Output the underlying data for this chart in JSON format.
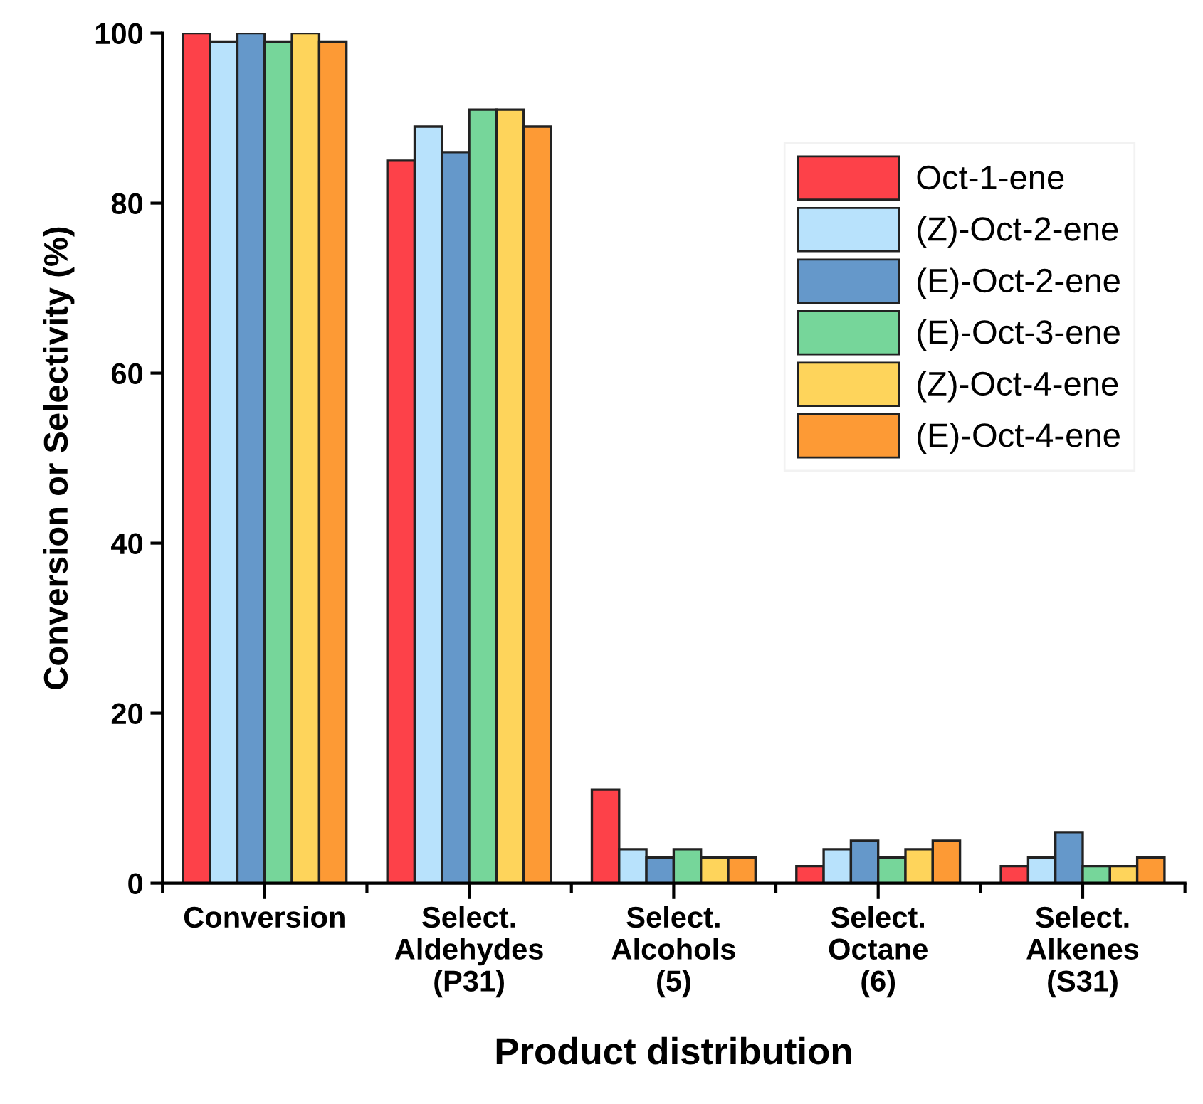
{
  "chart_data": {
    "type": "bar",
    "xlabel": "Product distribution",
    "ylabel": "Conversion or Selectivity (%)",
    "categories": [
      "Conversion",
      "Select.\nAldehydes\n(P31)",
      "Select.\nAlcohols\n(5)",
      "Select.\nOctane\n(6)",
      "Select.\nAlkenes\n(S31)"
    ],
    "series": [
      {
        "name": "Oct-1-ene",
        "color": "#fd4149",
        "values": [
          100,
          85,
          11,
          2,
          2
        ]
      },
      {
        "name": "(Z)-Oct-2-ene",
        "color": "#b8e2fc",
        "values": [
          99,
          89,
          4,
          4,
          3
        ]
      },
      {
        "name": "(E)-Oct-2-ene",
        "color": "#6598ca",
        "values": [
          100,
          86,
          3,
          5,
          6
        ]
      },
      {
        "name": "(E)-Oct-3-ene",
        "color": "#76d69a",
        "values": [
          99,
          91,
          4,
          3,
          2
        ]
      },
      {
        "name": "(Z)-Oct-4-ene",
        "color": "#fed45b",
        "values": [
          100,
          91,
          3,
          4,
          2
        ]
      },
      {
        "name": "(E)-Oct-4-ene",
        "color": "#fd9a35",
        "values": [
          99,
          89,
          3,
          5,
          3
        ]
      }
    ],
    "ylim": [
      0,
      100
    ],
    "yticks": [
      0,
      20,
      40,
      60,
      80,
      100
    ],
    "grid": false,
    "legend": "top right"
  }
}
